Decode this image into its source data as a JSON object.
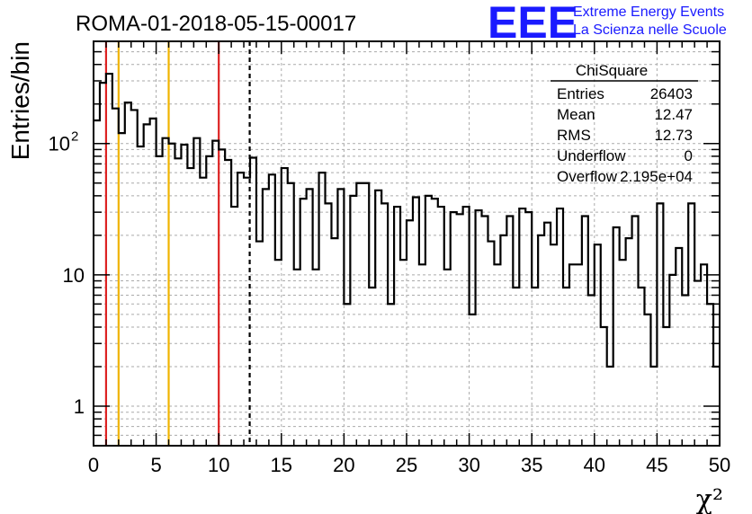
{
  "title": "ROMA-01-2018-05-15-00017",
  "logo": {
    "text": "EEE",
    "line1": "Extreme Energy Events",
    "line2": "La Scienza nelle Scuole",
    "color": "#1a1aff"
  },
  "stats_box": {
    "title": "ChiSquare",
    "rows": [
      {
        "label": "Entries",
        "value": "26403"
      },
      {
        "label": "Mean",
        "value": "12.47"
      },
      {
        "label": "RMS",
        "value": "12.73"
      },
      {
        "label": "Underflow",
        "value": "0"
      },
      {
        "label": "Overflow",
        "value": "2.195e+04"
      }
    ]
  },
  "colors": {
    "histogram": "#000000",
    "grid": "#aaaaaa",
    "red_line": "#dd2222",
    "yellow_line": "#f0b400",
    "dashed_line": "#000000"
  },
  "chart_data": {
    "type": "histogram",
    "xlabel": "χ²",
    "ylabel": "Entries/bin",
    "xlim": [
      0,
      50
    ],
    "ylim": [
      0.5,
      600
    ],
    "yscale": "log",
    "grid": true,
    "bin_width": 0.5,
    "x_ticks": [
      "0",
      "5",
      "10",
      "15",
      "20",
      "25",
      "30",
      "35",
      "40",
      "45",
      "50"
    ],
    "y_ticks": [
      {
        "value": 1,
        "label": "1"
      },
      {
        "value": 10,
        "label": "10"
      },
      {
        "value": 100,
        "label": "10",
        "exp": "2"
      }
    ],
    "values": [
      150,
      290,
      340,
      185,
      120,
      205,
      180,
      95,
      140,
      155,
      80,
      110,
      100,
      77,
      98,
      65,
      110,
      55,
      80,
      105,
      90,
      75,
      33,
      60,
      55,
      78,
      18,
      45,
      58,
      13,
      65,
      50,
      11,
      38,
      45,
      11,
      60,
      35,
      19,
      45,
      6,
      40,
      50,
      50,
      8,
      44,
      35,
      6,
      33,
      13,
      26,
      39,
      12,
      40,
      38,
      33,
      11,
      30,
      29,
      33,
      5,
      31,
      28,
      18,
      12,
      20,
      28,
      8,
      32,
      30,
      8,
      20,
      25,
      17,
      32,
      8,
      12,
      12,
      28,
      7,
      17,
      4,
      2,
      23,
      13,
      19,
      28,
      8,
      5,
      2,
      35,
      4,
      10,
      16,
      7,
      35,
      9,
      12,
      6,
      2
    ],
    "vertical_lines": [
      {
        "x": 1,
        "color": "red",
        "style": "solid"
      },
      {
        "x": 2,
        "color": "yellow",
        "style": "solid"
      },
      {
        "x": 6,
        "color": "yellow",
        "style": "solid"
      },
      {
        "x": 10,
        "color": "red",
        "style": "solid"
      },
      {
        "x": 12.47,
        "color": "black",
        "style": "dashed"
      }
    ]
  }
}
